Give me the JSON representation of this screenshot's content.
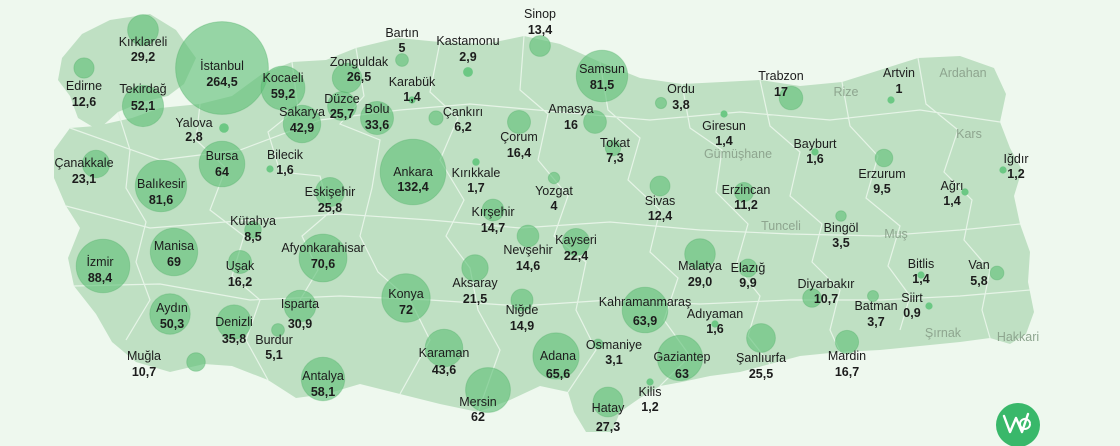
{
  "colors": {
    "background": "#eef8ee",
    "land": "#bfe0c3",
    "border": "#e6f4e7",
    "bubble": "#5fc078",
    "text": "#1c1c1c",
    "muted": "#8ea58f",
    "logo": "#39b86a"
  },
  "logo_icon": "brand-logo-icon",
  "cities": [
    {
      "name": "Kırklareli",
      "value": "29,2"
    },
    {
      "name": "Edirne",
      "value": "12,6"
    },
    {
      "name": "İstanbul",
      "value": "264,5"
    },
    {
      "name": "Tekirdağ",
      "value": "52,1"
    },
    {
      "name": "Kocaeli",
      "value": "59,2"
    },
    {
      "name": "Zonguldak",
      "value": "26,5"
    },
    {
      "name": "Bartın",
      "value": "5"
    },
    {
      "name": "Kastamonu",
      "value": "2,9"
    },
    {
      "name": "Sinop",
      "value": "13,4"
    },
    {
      "name": "Samsun",
      "value": "81,5"
    },
    {
      "name": "Ordu",
      "value": "3,8"
    },
    {
      "name": "Trabzon",
      "value": "17"
    },
    {
      "name": "Artvin",
      "value": "1"
    },
    {
      "name": "Yalova",
      "value": "2,8"
    },
    {
      "name": "Sakarya",
      "value": "42,9"
    },
    {
      "name": "Düzce",
      "value": "25,7"
    },
    {
      "name": "Bolu",
      "value": "33,6"
    },
    {
      "name": "Karabük",
      "value": "1,4"
    },
    {
      "name": "Çankırı",
      "value": "6,2"
    },
    {
      "name": "Çorum",
      "value": "16,4"
    },
    {
      "name": "Amasya",
      "value": "16"
    },
    {
      "name": "Giresun",
      "value": "1,4"
    },
    {
      "name": "Tokat",
      "value": "7,3"
    },
    {
      "name": "Bayburt",
      "value": "1,6"
    },
    {
      "name": "Çanakkale",
      "value": "23,1"
    },
    {
      "name": "Bursa",
      "value": "64"
    },
    {
      "name": "Bilecik",
      "value": "1,6"
    },
    {
      "name": "Ankara",
      "value": "132,4"
    },
    {
      "name": "Kırıkkale",
      "value": "1,7"
    },
    {
      "name": "Yozgat",
      "value": "4"
    },
    {
      "name": "Erzurum",
      "value": "9,5"
    },
    {
      "name": "Iğdır",
      "value": "1,2"
    },
    {
      "name": "Balıkesir",
      "value": "81,6"
    },
    {
      "name": "Eskişehir",
      "value": "25,8"
    },
    {
      "name": "Kırşehir",
      "value": "14,7"
    },
    {
      "name": "Sivas",
      "value": "12,4"
    },
    {
      "name": "Erzincan",
      "value": "11,2"
    },
    {
      "name": "Ağrı",
      "value": "1,4"
    },
    {
      "name": "Kütahya",
      "value": "8,5"
    },
    {
      "name": "Bingöl",
      "value": "3,5"
    },
    {
      "name": "Manisa",
      "value": "69"
    },
    {
      "name": "Afyonkarahisar",
      "value": "70,6"
    },
    {
      "name": "Nevşehir",
      "value": "14,6"
    },
    {
      "name": "Kayseri",
      "value": "22,4"
    },
    {
      "name": "İzmir",
      "value": "88,4"
    },
    {
      "name": "Uşak",
      "value": "16,2"
    },
    {
      "name": "Malatya",
      "value": "29,0"
    },
    {
      "name": "Elazığ",
      "value": "9,9"
    },
    {
      "name": "Bitlis",
      "value": "1,4"
    },
    {
      "name": "Van",
      "value": "5,8"
    },
    {
      "name": "Aksaray",
      "value": "21,5"
    },
    {
      "name": "Konya",
      "value": "72"
    },
    {
      "name": "Diyarbakır",
      "value": "10,7"
    },
    {
      "name": "Isparta",
      "value": "30,9"
    },
    {
      "name": "Niğde",
      "value": "14,9"
    },
    {
      "name": "Kahramanmaraş",
      "value": "63,9"
    },
    {
      "name": "Siirt",
      "value": "0,9"
    },
    {
      "name": "Batman",
      "value": "3,7"
    },
    {
      "name": "Aydın",
      "value": "50,3"
    },
    {
      "name": "Denizli",
      "value": "35,8"
    },
    {
      "name": "Adıyaman",
      "value": "1,6"
    },
    {
      "name": "Burdur",
      "value": "5,1"
    },
    {
      "name": "Osmaniye",
      "value": "3,1"
    },
    {
      "name": "Muğla",
      "value": "10,7"
    },
    {
      "name": "Karaman",
      "value": "43,6"
    },
    {
      "name": "Adana",
      "value": "65,6"
    },
    {
      "name": "Gaziantep",
      "value": "63"
    },
    {
      "name": "Şanlıurfa",
      "value": "25,5"
    },
    {
      "name": "Mardin",
      "value": "16,7"
    },
    {
      "name": "Antalya",
      "value": "58,1"
    },
    {
      "name": "Mersin",
      "value": "62"
    },
    {
      "name": "Kilis",
      "value": "1,2"
    },
    {
      "name": "Hatay",
      "value": "27,3"
    }
  ],
  "unlabeled_provinces": [
    "Ardahan",
    "Rize",
    "Kars",
    "Gümüşhane",
    "Tunceli",
    "Muş",
    "Şırnak",
    "Hakkari"
  ]
}
